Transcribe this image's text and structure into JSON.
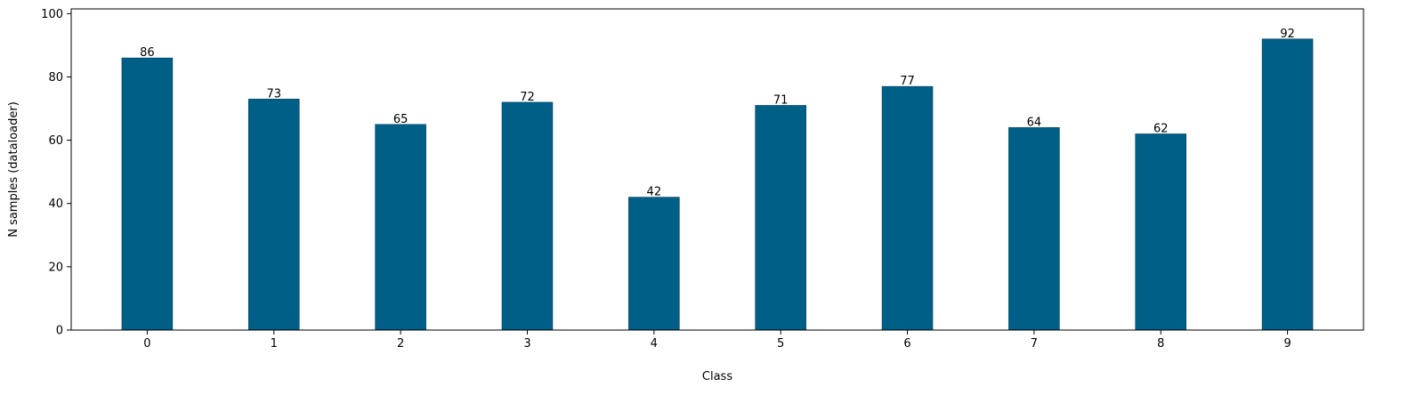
{
  "chart_data": {
    "type": "bar",
    "title": "",
    "xlabel": "Class",
    "ylabel": "N samples (dataloader)",
    "categories": [
      "0",
      "1",
      "2",
      "3",
      "4",
      "5",
      "6",
      "7",
      "8",
      "9"
    ],
    "values": [
      86,
      73,
      65,
      72,
      42,
      71,
      77,
      64,
      62,
      92
    ],
    "data_labels": [
      "86",
      "73",
      "65",
      "72",
      "42",
      "71",
      "77",
      "64",
      "62",
      "92"
    ],
    "ylim": [
      0,
      101.5
    ],
    "yticks": [
      0,
      20,
      40,
      60,
      80,
      100
    ],
    "ytick_labels": [
      "0",
      "20",
      "40",
      "60",
      "80",
      "100"
    ],
    "bar_color": "#005f87",
    "grid": false,
    "legend": "none"
  }
}
